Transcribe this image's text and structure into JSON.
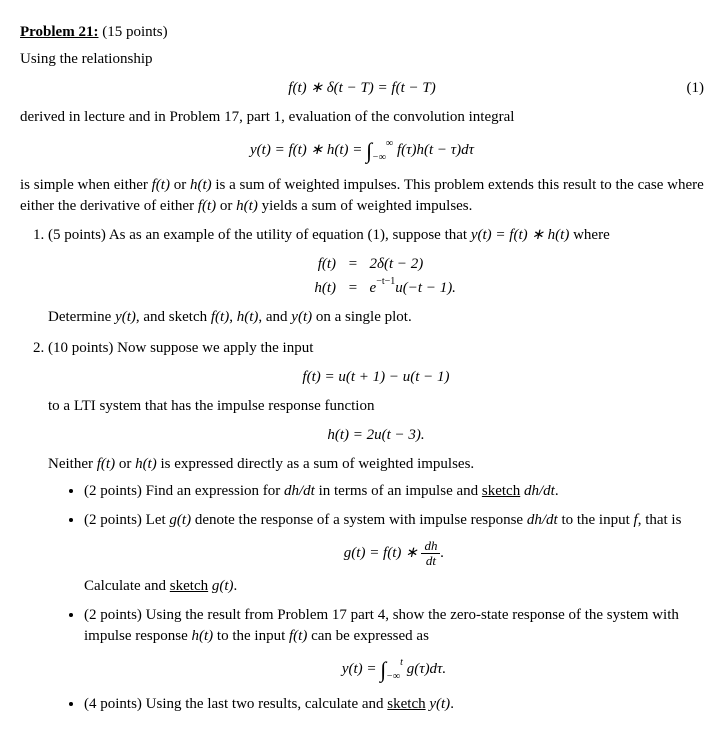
{
  "header": {
    "title": "Problem 21:",
    "points": "(15 points)"
  },
  "intro1": "Using the relationship",
  "eq1": "f(t) ∗ δ(t − T) = f(t − T)",
  "eq1_num": "(1)",
  "intro2": "derived in lecture and in Problem 17, part 1, evaluation of the convolution integral",
  "eq2_lhs": "y(t) = f(t) ∗ h(t) = ",
  "eq2_int_lower": "−∞",
  "eq2_int_upper": "∞",
  "eq2_rhs": " f(τ)h(t − τ)dτ",
  "intro3a": "is simple when either ",
  "intro3b": " or ",
  "intro3c": " is a sum of weighted impulses. This problem extends this result to the case where either the derivative of either ",
  "intro3d": " yields a sum of weighted impulses.",
  "ft": "f(t)",
  "ht": "h(t)",
  "yt": "y(t)",
  "part1": {
    "lead": "(5 points) As as an example of the utility of equation (1), suppose that ",
    "cond": "y(t) = f(t) ∗ h(t)",
    "where": " where",
    "ft_lhs": "f(t)",
    "ft_rhs": "2δ(t − 2)",
    "ht_lhs": "h(t)",
    "ht_exp_pre": "e",
    "ht_exp_sup": "−t−1",
    "ht_rest": "u(−t − 1).",
    "tail": "Determine ",
    "tail2": ", and sketch ",
    "tail3": ", ",
    "tail4": ", and ",
    "tail5": " on a single plot."
  },
  "part2": {
    "lead": "(10 points) Now suppose we apply the input",
    "ft_eq": "f(t) = u(t + 1) − u(t − 1)",
    "mid": "to a LTI system that has the impulse response function",
    "ht_eq": "h(t) = 2u(t − 3).",
    "note": "Neither ",
    "note2": " or ",
    "note3": " is expressed directly as a sum of weighted impulses.",
    "b1a": "(2 points) Find an expression for ",
    "b1b": " in terms of an impulse and ",
    "b1c": "sketch",
    "b1d": ".",
    "dhdt": "dh/dt",
    "b2a": "(2 points) Let ",
    "gt": "g(t)",
    "b2b": " denote the response of a system with impulse response ",
    "b2c": " to the input ",
    "f": "f",
    "b2d": ", that is",
    "g_eq_lhs": "g(t) = f(t) ∗ ",
    "g_frac_num": "dh",
    "g_frac_den": "dt",
    "g_eq_end": ".",
    "b2e": "Calculate and ",
    "b2f": "sketch",
    "b2g": ".",
    "b3a": "(2 points) Using the result from Problem 17 part 4, show the zero-state response of the system with impulse response ",
    "b3b": " to the input ",
    "b3c": " can be expressed as",
    "y_eq_lhs": "y(t) = ",
    "y_int_lower": "−∞",
    "y_int_upper": "t",
    "y_eq_rhs": " g(τ)dτ.",
    "b4a": "(4 points) Using the last two results, calculate and ",
    "b4b": "sketch",
    "b4c": "."
  }
}
